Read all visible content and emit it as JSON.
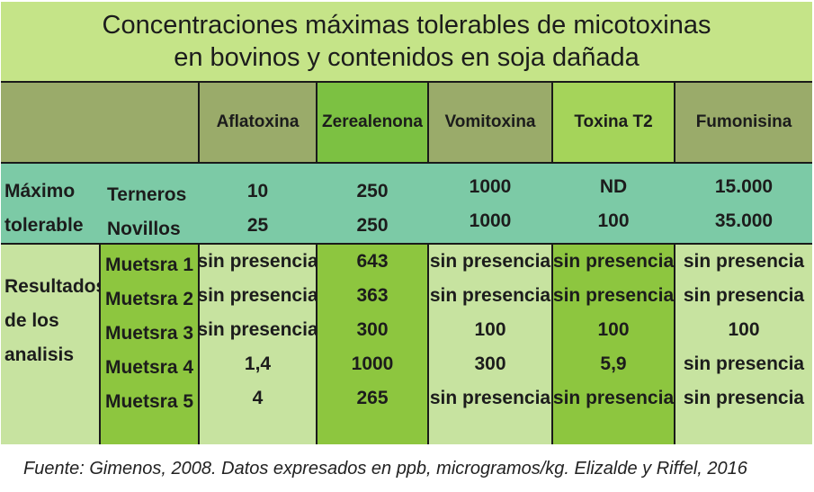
{
  "title": {
    "line1": "Concentraciones máximas tolerables de micotoxinas",
    "line2": "en bovinos y contenidos en soja dañada"
  },
  "columns": [
    "Aflatoxina",
    "Zerealenona",
    "Vomitoxina",
    "Toxina T2",
    "Fumonisina"
  ],
  "maximo": {
    "label_line1": "Máximo",
    "label_line2": "tolerable",
    "rows": [
      {
        "animal": "Terneros",
        "values": [
          "10",
          "250",
          "1000",
          "ND",
          "15.000"
        ]
      },
      {
        "animal": "Novillos",
        "values": [
          "25",
          "250",
          "1000",
          "100",
          "35.000"
        ]
      }
    ]
  },
  "resultados": {
    "label_lines": [
      "Resultados",
      "de los",
      "analisis"
    ],
    "samples": [
      "Muetsra 1",
      "Muetsra 2",
      "Muetsra 3",
      "Muetsra 4",
      "Muetsra 5"
    ],
    "columns": [
      [
        "sin presencia",
        "sin presencia",
        "sin presencia",
        "1,4",
        "4"
      ],
      [
        "643",
        "363",
        "300",
        "1000",
        "265"
      ],
      [
        "sin presencia",
        "sin presencia",
        "100",
        "300",
        "sin presencia"
      ],
      [
        "sin presencia",
        "sin presencia",
        "100",
        "5,9",
        "sin presencia"
      ],
      [
        "sin presencia",
        "sin presencia",
        "100",
        "sin presencia",
        "sin presencia"
      ]
    ]
  },
  "source": "Fuente: Gimenos, 2008. Datos expresados en ppb, microgramos/kg. Elizalde y Riffel, 2016",
  "colors": {
    "title_bg": "#c5e488",
    "header_olive": "#9aab6a",
    "header_green": "#7cc142",
    "header_lime": "#a5d45a",
    "teal_row": "#7ccaa6",
    "light_green": "#c7e3a0",
    "bright_green": "#8dc63f",
    "border": "#1a1a1a"
  }
}
